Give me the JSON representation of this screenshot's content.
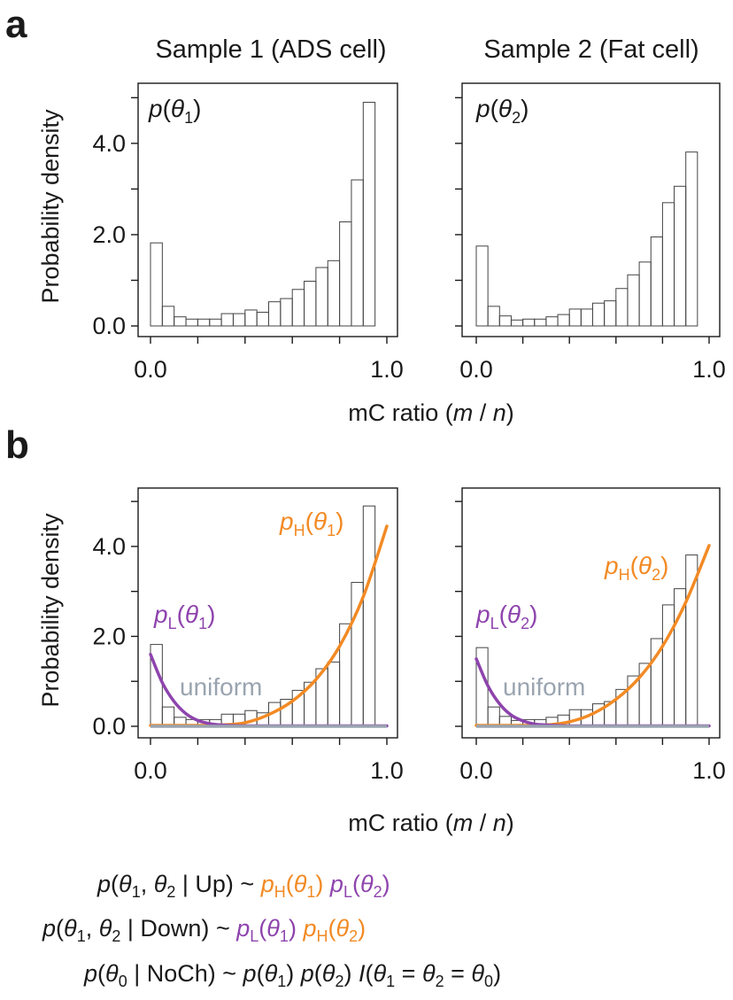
{
  "panel_labels": {
    "a": "a",
    "b": "b"
  },
  "colors": {
    "high": "#F28A24",
    "low": "#8E44AD",
    "uniform": "#9AA4B0",
    "axis": "#1a1a1a",
    "bars": "#444444"
  },
  "sample_titles": [
    "Sample 1 (ADS cell)",
    "Sample 2 (Fat cell)"
  ],
  "panel_a_inset": [
    {
      "italic": "p",
      "open": "(",
      "theta": "θ",
      "sub": "1",
      "close": ")"
    },
    {
      "italic": "p",
      "open": "(",
      "theta": "θ",
      "sub": "2",
      "close": ")"
    }
  ],
  "curve_labels": {
    "sample1": {
      "high": {
        "p": "p",
        "s": "H",
        "open": "(",
        "theta": "θ",
        "sub": "1",
        "close": ")"
      },
      "low": {
        "p": "p",
        "s": "L",
        "open": "(",
        "theta": "θ",
        "sub": "1",
        "close": ")"
      }
    },
    "sample2": {
      "high": {
        "p": "p",
        "s": "H",
        "open": "(",
        "theta": "θ",
        "sub": "2",
        "close": ")"
      },
      "low": {
        "p": "p",
        "s": "L",
        "open": "(",
        "theta": "θ",
        "sub": "2",
        "close": ")"
      }
    },
    "uniform": "uniform"
  },
  "equations": {
    "up": {
      "lhs_p": "p",
      "lhs_open": "(",
      "t1": "θ",
      "s1": "1",
      "comma": ", ",
      "t2": "θ",
      "s2": "2",
      "cond": " | Up)",
      "tilde": " ~ ",
      "f1_p": "p",
      "f1_s": "H",
      "f1_open": "(",
      "f1_t": "θ",
      "f1_sub": "1",
      "f1_close": ")",
      "sp": " ",
      "f2_p": "p",
      "f2_s": "L",
      "f2_open": "(",
      "f2_t": "θ",
      "f2_sub": "2",
      "f2_close": ")"
    },
    "down": {
      "lhs_p": "p",
      "lhs_open": "(",
      "t1": "θ",
      "s1": "1",
      "comma": ", ",
      "t2": "θ",
      "s2": "2",
      "cond": " | Down)",
      "tilde": " ~ ",
      "f1_p": "p",
      "f1_s": "L",
      "f1_open": "(",
      "f1_t": "θ",
      "f1_sub": "1",
      "f1_close": ")",
      "sp": " ",
      "f2_p": "p",
      "f2_s": "H",
      "f2_open": "(",
      "f2_t": "θ",
      "f2_sub": "2",
      "f2_close": ")"
    },
    "noch": {
      "lhs_p": "p",
      "lhs_open": "(",
      "t0": "θ",
      "s0": "0",
      "cond": " | NoCh)",
      "tilde": " ~ ",
      "a_p": "p",
      "a_open": "(",
      "a_t": "θ",
      "a_s": "1",
      "a_close": ")",
      "sp1": " ",
      "b_p": "p",
      "b_open": "(",
      "b_t": "θ",
      "b_s": "2",
      "b_close": ")",
      "sp2": " ",
      "i": "I",
      "i_open": "(",
      "i_t1": "θ",
      "i_s1": "1",
      "eq1": " = ",
      "i_t2": "θ",
      "i_s2": "2",
      "eq2": " = ",
      "i_t3": "θ",
      "i_s3": "0",
      "i_close": ")"
    }
  },
  "chart_data": [
    {
      "type": "bar",
      "panel": "a",
      "title": "Sample 1 (ADS cell)",
      "xlabel": "mC ratio (m / n)",
      "ylabel": "Probability density",
      "xlim": [
        0,
        1
      ],
      "ylim": [
        0,
        5.2
      ],
      "xticks": [
        "0.0",
        "1.0"
      ],
      "yticks": [
        "0.0",
        "2.0",
        "4.0"
      ],
      "bin_width": 0.05,
      "bin_starts": [
        0.0,
        0.05,
        0.1,
        0.15,
        0.2,
        0.25,
        0.3,
        0.35,
        0.4,
        0.45,
        0.5,
        0.55,
        0.6,
        0.65,
        0.7,
        0.75,
        0.8,
        0.85,
        0.9,
        0.95
      ],
      "values": [
        1.82,
        0.43,
        0.2,
        0.15,
        0.15,
        0.15,
        0.27,
        0.27,
        0.35,
        0.3,
        0.53,
        0.6,
        0.8,
        0.98,
        1.28,
        1.43,
        2.28,
        3.2,
        4.9,
        0
      ]
    },
    {
      "type": "bar",
      "panel": "a",
      "title": "Sample 2 (Fat cell)",
      "xlabel": "mC ratio (m / n)",
      "ylabel": "",
      "xlim": [
        0,
        1
      ],
      "ylim": [
        0,
        5.2
      ],
      "xticks": [
        "0.0",
        "1.0"
      ],
      "yticks": [],
      "bin_width": 0.05,
      "bin_starts": [
        0.0,
        0.05,
        0.1,
        0.15,
        0.2,
        0.25,
        0.3,
        0.35,
        0.4,
        0.45,
        0.5,
        0.55,
        0.6,
        0.65,
        0.7,
        0.75,
        0.8,
        0.85,
        0.9,
        0.95
      ],
      "values": [
        1.75,
        0.43,
        0.22,
        0.13,
        0.15,
        0.15,
        0.2,
        0.25,
        0.37,
        0.37,
        0.5,
        0.55,
        0.82,
        1.12,
        1.4,
        1.95,
        2.7,
        3.06,
        3.81,
        0
      ]
    },
    {
      "type": "bar",
      "panel": "b",
      "xlabel": "mC ratio (m / n)",
      "ylabel": "Probability density",
      "xlim": [
        0,
        1
      ],
      "ylim": [
        0,
        5.2
      ],
      "xticks": [
        "0.0",
        "1.0"
      ],
      "yticks": [
        "0.0",
        "2.0",
        "4.0"
      ],
      "bin_width": 0.05,
      "bin_starts": [
        0.0,
        0.05,
        0.1,
        0.15,
        0.2,
        0.25,
        0.3,
        0.35,
        0.4,
        0.45,
        0.5,
        0.55,
        0.6,
        0.65,
        0.7,
        0.75,
        0.8,
        0.85,
        0.9,
        0.95
      ],
      "values": [
        1.82,
        0.43,
        0.2,
        0.15,
        0.15,
        0.15,
        0.27,
        0.27,
        0.35,
        0.3,
        0.53,
        0.6,
        0.8,
        0.98,
        1.28,
        1.43,
        2.28,
        3.2,
        4.9,
        0
      ],
      "curves": [
        {
          "name": "pH(θ1)",
          "color": "#F28A24",
          "x": [
            0,
            0.1,
            0.2,
            0.3,
            0.4,
            0.5,
            0.6,
            0.7,
            0.8,
            0.9,
            1.0
          ],
          "y": [
            0.02,
            0.02,
            0.02,
            0.03,
            0.08,
            0.26,
            0.56,
            1.04,
            1.78,
            2.88,
            4.45
          ]
        },
        {
          "name": "pL(θ1)",
          "color": "#8E44AD",
          "x": [
            0,
            0.05,
            0.1,
            0.15,
            0.2,
            0.25,
            0.3,
            0.4,
            0.5,
            0.7,
            1.0
          ],
          "y": [
            1.6,
            0.97,
            0.55,
            0.28,
            0.13,
            0.06,
            0.03,
            0.01,
            0.01,
            0.01,
            0.01
          ]
        },
        {
          "name": "uniform",
          "color": "#9AA4B0",
          "x": [
            0,
            1
          ],
          "y": [
            0.0,
            0.0
          ]
        }
      ]
    },
    {
      "type": "bar",
      "panel": "b",
      "xlabel": "mC ratio (m / n)",
      "ylabel": "",
      "xlim": [
        0,
        1
      ],
      "ylim": [
        0,
        5.2
      ],
      "xticks": [
        "0.0",
        "1.0"
      ],
      "yticks": [],
      "bin_width": 0.05,
      "bin_starts": [
        0.0,
        0.05,
        0.1,
        0.15,
        0.2,
        0.25,
        0.3,
        0.35,
        0.4,
        0.45,
        0.5,
        0.55,
        0.6,
        0.65,
        0.7,
        0.75,
        0.8,
        0.85,
        0.9,
        0.95
      ],
      "values": [
        1.75,
        0.43,
        0.22,
        0.13,
        0.15,
        0.15,
        0.2,
        0.25,
        0.37,
        0.37,
        0.5,
        0.55,
        0.82,
        1.12,
        1.4,
        1.95,
        2.7,
        3.06,
        3.81,
        0
      ],
      "curves": [
        {
          "name": "pH(θ2)",
          "color": "#F28A24",
          "x": [
            0,
            0.1,
            0.2,
            0.3,
            0.4,
            0.5,
            0.6,
            0.7,
            0.8,
            0.9,
            1.0
          ],
          "y": [
            0.02,
            0.02,
            0.02,
            0.03,
            0.1,
            0.28,
            0.6,
            1.08,
            1.78,
            2.76,
            4.02
          ]
        },
        {
          "name": "pL(θ2)",
          "color": "#8E44AD",
          "x": [
            0,
            0.05,
            0.1,
            0.15,
            0.2,
            0.25,
            0.3,
            0.4,
            0.5,
            0.7,
            1.0
          ],
          "y": [
            1.5,
            0.9,
            0.5,
            0.25,
            0.12,
            0.05,
            0.03,
            0.01,
            0.01,
            0.01,
            0.01
          ]
        },
        {
          "name": "uniform",
          "color": "#9AA4B0",
          "x": [
            0,
            1
          ],
          "y": [
            0.0,
            0.0
          ]
        }
      ]
    }
  ]
}
